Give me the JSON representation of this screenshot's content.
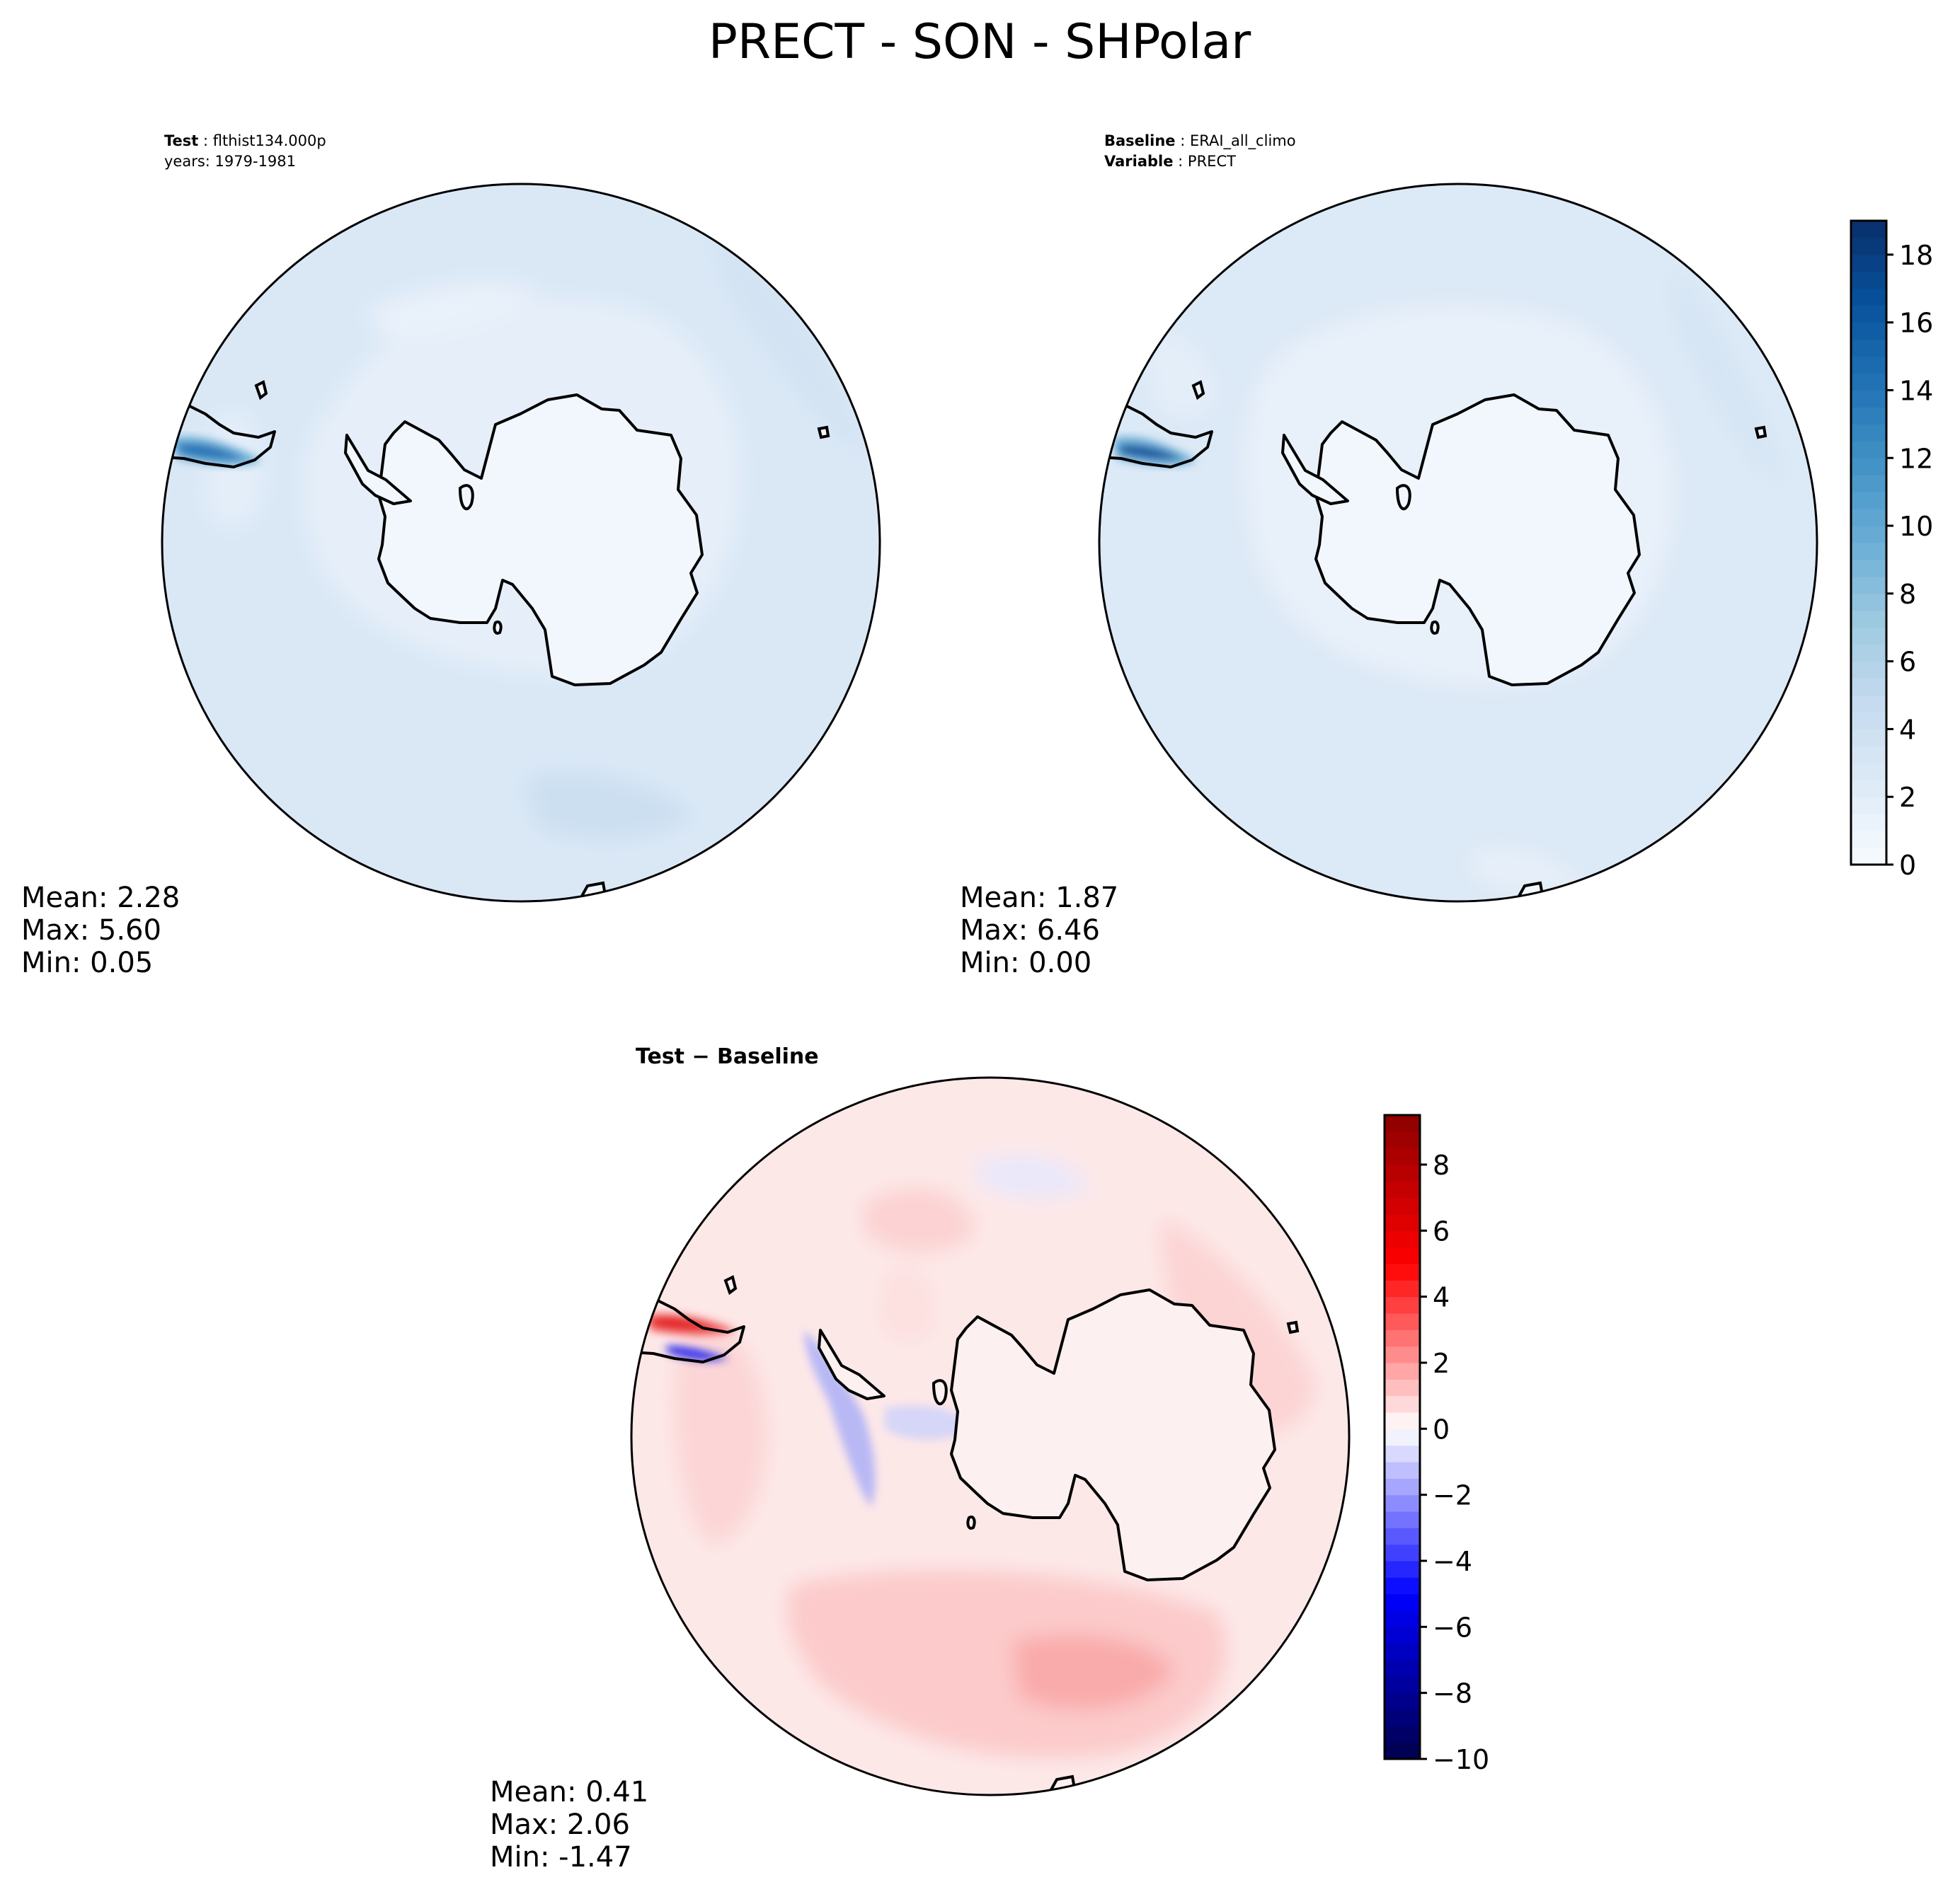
{
  "figure": {
    "title": "PRECT - SON - SHPolar"
  },
  "panels": [
    {
      "id": "test",
      "header": [
        {
          "bold": "Test",
          "text": "flthist134.000p"
        },
        {
          "bold": "",
          "text": "years: 1979-1981"
        }
      ],
      "stats": [
        {
          "label": "Mean:",
          "value": "2.28"
        },
        {
          "label": "Max:",
          "value": "5.60"
        },
        {
          "label": "Min:",
          "value": "0.05"
        }
      ]
    },
    {
      "id": "baseline",
      "header": [
        {
          "bold": "Baseline",
          "text": "ERAI_all_climo"
        },
        {
          "bold": "Variable",
          "text": "PRECT"
        }
      ],
      "stats": [
        {
          "label": "Mean:",
          "value": "1.87"
        },
        {
          "label": "Max:",
          "value": "6.46"
        },
        {
          "label": "Min:",
          "value": "0.00"
        }
      ]
    },
    {
      "id": "diff",
      "header": [
        {
          "bold": "Test − Baseline",
          "text": ""
        }
      ],
      "stats": [
        {
          "label": "Mean:",
          "value": "0.41"
        },
        {
          "label": "Max:",
          "value": "2.06"
        },
        {
          "label": "Min:",
          "value": "-1.47"
        }
      ]
    }
  ],
  "chart_data": [
    {
      "type": "heatmap",
      "projection": "south-polar-stereographic",
      "title": "Test : flthist134.000p",
      "subtitle": "years: 1979-1981",
      "variable": "PRECT",
      "season": "SON",
      "colormap": "Blues",
      "stats": {
        "mean": 2.28,
        "max": 5.6,
        "min": 0.05
      },
      "field_levels": {
        "antarctic_interior": 0.5,
        "inner_ocean": 1.5,
        "outer_ocean": 2.5,
        "south_america_coast": 5.6
      }
    },
    {
      "type": "heatmap",
      "projection": "south-polar-stereographic",
      "title": "Baseline : ERAI_all_climo",
      "subtitle": "Variable : PRECT",
      "colormap": "Blues",
      "stats": {
        "mean": 1.87,
        "max": 6.46,
        "min": 0.0
      },
      "field_levels": {
        "antarctic_interior": 0.3,
        "inner_ocean": 1.2,
        "outer_ocean": 2.2,
        "south_america_coast": 6.46
      }
    },
    {
      "type": "heatmap",
      "projection": "south-polar-stereographic",
      "title": "Test − Baseline",
      "colormap": "seismic",
      "stats": {
        "mean": 0.41,
        "max": 2.06,
        "min": -1.47
      },
      "field_levels": {
        "antarctic_interior": 0.2,
        "ocean": 0.5,
        "southern_pacific_band": 1.5,
        "antarctic_peninsula": -1.0,
        "south_america_coast_pos": 2.06,
        "south_america_coast_neg": -1.47
      }
    }
  ],
  "colorbars": [
    {
      "id": "main",
      "colormap": "Blues",
      "range": [
        0,
        19
      ],
      "ticks": [
        0,
        2,
        4,
        6,
        8,
        10,
        12,
        14,
        16,
        18
      ],
      "tick_labels": [
        "0",
        "2",
        "4",
        "6",
        "8",
        "10",
        "12",
        "14",
        "16",
        "18"
      ]
    },
    {
      "id": "diff",
      "colormap": "seismic",
      "range": [
        -10,
        9.5
      ],
      "ticks": [
        -10,
        -8,
        -6,
        -4,
        -2,
        0,
        2,
        4,
        6,
        8
      ],
      "tick_labels": [
        "−10",
        "−8",
        "−6",
        "−4",
        "−2",
        "0",
        "2",
        "4",
        "6",
        "8"
      ]
    }
  ]
}
